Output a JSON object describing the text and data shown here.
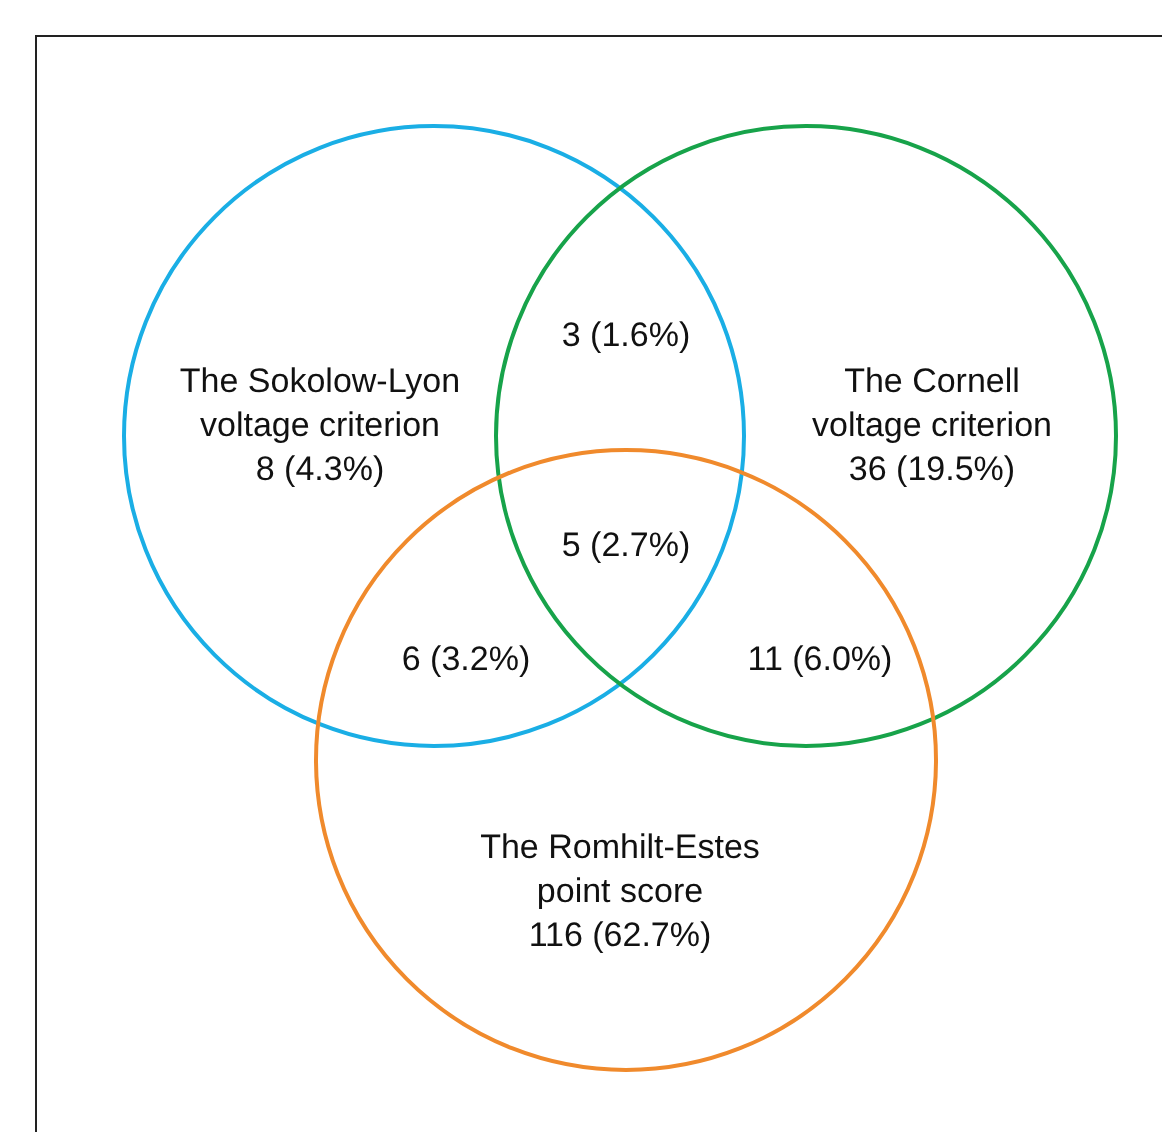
{
  "chart_data": {
    "type": "other",
    "categories": [
      "The Sokolow-Lyon voltage criterion",
      "The Cornell voltage criterion",
      "The Romhilt-Estes point score"
    ],
    "values": [
      8,
      36,
      116
    ],
    "value_labels": [
      "8 (4.3%)",
      "36 (19.5%)",
      "116 (62.7%)"
    ],
    "colors": [
      "#1aaee5",
      "#17a34a",
      "#f08a2c"
    ],
    "annotations": [
      "3 (1.6%)",
      "6 (3.2%)",
      "11 (6.0%)",
      "5 (2.7%)"
    ]
  }
}
